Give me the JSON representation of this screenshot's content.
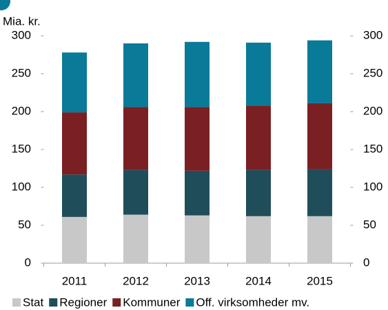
{
  "chart_data": {
    "type": "bar",
    "stacked": true,
    "ylabel": "Mia. kr.",
    "categories": [
      "2011",
      "2012",
      "2013",
      "2014",
      "2015"
    ],
    "series": [
      {
        "name": "Stat",
        "color": "#c8c8c8",
        "values": [
          61,
          64,
          63,
          62,
          62
        ]
      },
      {
        "name": "Regioner",
        "color": "#1f4e5a",
        "values": [
          56,
          59,
          59,
          61,
          62
        ]
      },
      {
        "name": "Kommuner",
        "color": "#7a1f22",
        "values": [
          82,
          83,
          84,
          85,
          87
        ]
      },
      {
        "name": "Off. virksomheder mv.",
        "color": "#0a7a99",
        "values": [
          79,
          84,
          86,
          83,
          83
        ]
      }
    ],
    "ylim": [
      0,
      300
    ],
    "yticks": [
      0,
      50,
      100,
      150,
      200,
      250,
      300
    ],
    "y2lim": [
      0,
      300
    ],
    "y2ticks": [
      0,
      50,
      100,
      150,
      200,
      250,
      300
    ],
    "grid": false,
    "legend": "bottom"
  }
}
